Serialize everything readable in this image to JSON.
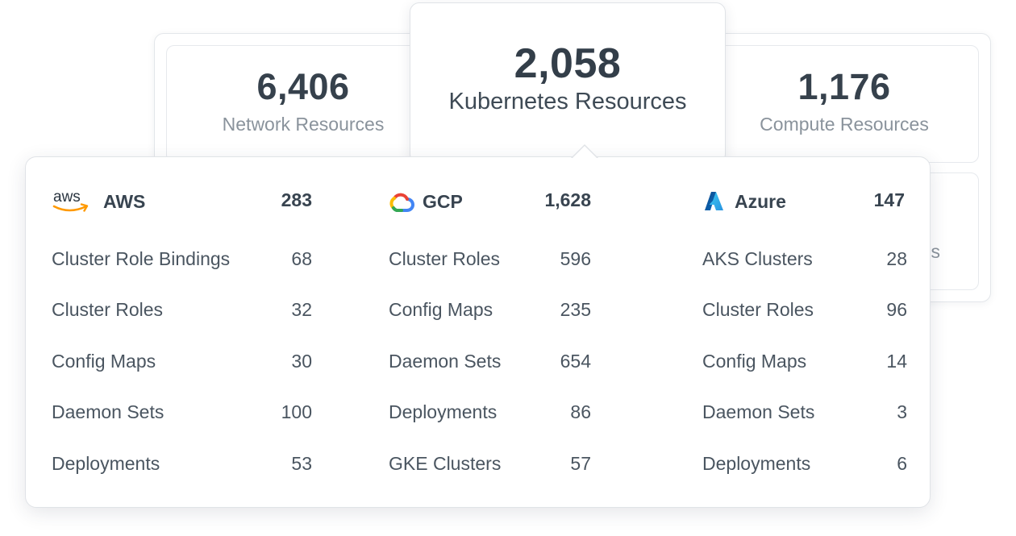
{
  "summary": {
    "network": {
      "value": "6,406",
      "label": "Network Resources"
    },
    "kubernetes": {
      "value": "2,058",
      "label": "Kubernetes Resources"
    },
    "compute": {
      "value": "1,176",
      "label": "Compute Resources"
    },
    "hidden_card_peek": "s"
  },
  "providers": [
    {
      "name": "AWS",
      "total": "283",
      "logo_text": "aws",
      "icon": "aws-logo",
      "items": [
        {
          "label": "Cluster Role Bindings",
          "count": "68"
        },
        {
          "label": "Cluster Roles",
          "count": "32"
        },
        {
          "label": "Config Maps",
          "count": "30"
        },
        {
          "label": "Daemon Sets",
          "count": "100"
        },
        {
          "label": "Deployments",
          "count": "53"
        }
      ]
    },
    {
      "name": "GCP",
      "total": "1,628",
      "icon": "google-cloud-logo",
      "items": [
        {
          "label": "Cluster Roles",
          "count": "596"
        },
        {
          "label": "Config Maps",
          "count": "235"
        },
        {
          "label": "Daemon Sets",
          "count": "654"
        },
        {
          "label": "Deployments",
          "count": "86"
        },
        {
          "label": "GKE Clusters",
          "count": "57"
        }
      ]
    },
    {
      "name": "Azure",
      "total": "147",
      "icon": "azure-logo",
      "items": [
        {
          "label": "AKS Clusters",
          "count": "28"
        },
        {
          "label": "Cluster Roles",
          "count": "96"
        },
        {
          "label": "Config Maps",
          "count": "14"
        },
        {
          "label": "Daemon Sets",
          "count": "3"
        },
        {
          "label": "Deployments",
          "count": "6"
        }
      ]
    }
  ],
  "colors": {
    "text_dark": "#384450",
    "text_muted": "#8a939c",
    "aws_orange": "#ff9900",
    "gcp_blue": "#4285f4",
    "gcp_red": "#ea4335",
    "gcp_yellow": "#fbbc05",
    "gcp_green": "#34a853",
    "azure_blue": "#0078d4"
  }
}
